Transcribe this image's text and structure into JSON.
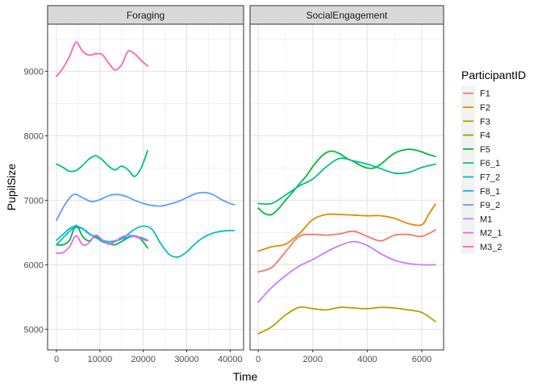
{
  "chart_data": {
    "type": "line",
    "xlabel": "Time",
    "ylabel": "PupilSize",
    "grid": true,
    "legend": {
      "title": "ParticipantID",
      "placement": "right",
      "entries": [
        "F1",
        "F2",
        "F3",
        "F4",
        "F5",
        "F6_1",
        "F7_2",
        "F8_1",
        "F9_2",
        "M1",
        "M2_1",
        "M3_2"
      ]
    },
    "colors": {
      "F1": "#F8766D",
      "F2": "#DE8C00",
      "F3": "#B79F00",
      "F4": "#7CAE00",
      "F5": "#00BA38",
      "F6_1": "#00C08B",
      "F7_2": "#00BFC4",
      "F8_1": "#00B4F0",
      "F9_2": "#619CFF",
      "M1": "#C77CFF",
      "M2_1": "#F564E3",
      "M3_2": "#FF64B0"
    },
    "y_ticks": [
      5000,
      6000,
      7000,
      8000,
      9000
    ],
    "ylim": [
      4680,
      9730
    ],
    "panels": [
      {
        "strip": "Foraging",
        "xlim": [
          -2050,
          43100
        ],
        "x_ticks": [
          0,
          10000,
          20000,
          30000,
          40000
        ],
        "x_tick_labels": [
          "0",
          "10000",
          "20000",
          "30000",
          "40000"
        ],
        "series": [
          {
            "name": "M3_2",
            "x": [
              0,
              1500,
              3000,
              4500,
              6000,
              7500,
              9000,
              10500,
              12000,
              13500,
              15000,
              16500,
              18000,
              19500,
              21000
            ],
            "y": [
              8920,
              9050,
              9230,
              9450,
              9310,
              9250,
              9270,
              9260,
              9130,
              9020,
              9100,
              9310,
              9270,
              9170,
              9080
            ]
          },
          {
            "name": "F6_1",
            "x": [
              0,
              1500,
              3000,
              4500,
              6000,
              7500,
              9000,
              10500,
              12000,
              13500,
              15000,
              16500,
              18000,
              19500,
              21000
            ],
            "y": [
              7560,
              7510,
              7450,
              7460,
              7540,
              7640,
              7690,
              7630,
              7530,
              7470,
              7530,
              7470,
              7370,
              7500,
              7770
            ]
          },
          {
            "name": "F9_2",
            "x": [
              0,
              2000,
              4000,
              6000,
              8000,
              10000,
              12000,
              14000,
              16000,
              18000,
              20000,
              22000,
              24000,
              26000,
              28000,
              30000,
              32000,
              34000,
              36000,
              38000,
              40000,
              41000
            ],
            "y": [
              6690,
              6940,
              7090,
              7040,
              6980,
              7010,
              7070,
              7090,
              7060,
              7000,
              6950,
              6920,
              6910,
              6940,
              6980,
              7040,
              7100,
              7120,
              7090,
              7010,
              6950,
              6930
            ]
          },
          {
            "name": "F7_2",
            "x": [
              0,
              2000,
              4000,
              6000,
              8000,
              10000,
              12000,
              14000,
              16000,
              18000,
              20000,
              22000,
              24000,
              26000,
              28000,
              30000,
              32000,
              34000,
              36000,
              38000,
              40000,
              41000
            ],
            "y": [
              6310,
              6450,
              6570,
              6560,
              6460,
              6390,
              6360,
              6380,
              6450,
              6550,
              6600,
              6550,
              6330,
              6160,
              6120,
              6200,
              6330,
              6430,
              6490,
              6520,
              6530,
              6530
            ]
          },
          {
            "name": "F5",
            "x": [
              0,
              1500,
              3000,
              4500,
              6000,
              7500,
              9000,
              10500,
              12000,
              13500,
              15000,
              16500,
              18000,
              19500,
              21000
            ],
            "y": [
              6310,
              6310,
              6380,
              6610,
              6440,
              6370,
              6440,
              6380,
              6330,
              6310,
              6360,
              6420,
              6450,
              6390,
              6260
            ]
          },
          {
            "name": "F8_1",
            "x": [
              0,
              1500,
              3000,
              4500,
              6000,
              7500,
              9000,
              10500,
              12000,
              13500,
              15000,
              16500,
              18000,
              19500,
              21000
            ],
            "y": [
              6380,
              6470,
              6560,
              6600,
              6560,
              6480,
              6430,
              6360,
              6330,
              6360,
              6400,
              6430,
              6440,
              6420,
              6380
            ]
          },
          {
            "name": "M2_1",
            "x": [
              0,
              1500,
              3000,
              4500,
              6000,
              7500,
              9000,
              10500,
              12000,
              13500,
              15000,
              16500,
              18000,
              19500,
              21000
            ],
            "y": [
              6180,
              6190,
              6280,
              6450,
              6310,
              6340,
              6460,
              6390,
              6320,
              6360,
              6430,
              6460,
              6440,
              6400,
              6370
            ]
          }
        ]
      },
      {
        "strip": "SocialEngagement",
        "xlim": [
          -300,
          6800
        ],
        "x_ticks": [
          0,
          2000,
          4000,
          6000
        ],
        "x_tick_labels": [
          "0",
          "2000",
          "4000",
          "6000"
        ],
        "series": [
          {
            "name": "F5",
            "x": [
              0,
              250,
              500,
              750,
              1000,
              1250,
              1500,
              1750,
              2000,
              2250,
              2500,
              2750,
              3000,
              3250,
              3500,
              3750,
              4000,
              4250,
              4500,
              4750,
              5000,
              5250,
              5500,
              5750,
              6000,
              6250,
              6500
            ],
            "y": [
              6880,
              6790,
              6780,
              6870,
              7000,
              7120,
              7250,
              7370,
              7520,
              7650,
              7740,
              7760,
              7720,
              7650,
              7600,
              7540,
              7500,
              7500,
              7560,
              7650,
              7730,
              7770,
              7790,
              7780,
              7750,
              7710,
              7680
            ]
          },
          {
            "name": "F6_1",
            "x": [
              0,
              500,
              1000,
              1500,
              2000,
              2500,
              3000,
              3500,
              4000,
              4500,
              5000,
              5500,
              6000,
              6500
            ],
            "y": [
              6950,
              6950,
              7080,
              7220,
              7330,
              7520,
              7650,
              7610,
              7560,
              7490,
              7420,
              7430,
              7510,
              7560
            ]
          },
          {
            "name": "F2",
            "x": [
              0,
              500,
              1000,
              1500,
              2000,
              2500,
              3000,
              3500,
              4000,
              4500,
              5000,
              5500,
              6000,
              6250,
              6500
            ],
            "y": [
              6210,
              6280,
              6320,
              6480,
              6700,
              6780,
              6780,
              6770,
              6760,
              6760,
              6720,
              6640,
              6620,
              6780,
              6940
            ]
          },
          {
            "name": "F1",
            "x": [
              0,
              500,
              1000,
              1500,
              2000,
              2500,
              3000,
              3500,
              4000,
              4500,
              5000,
              5500,
              6000,
              6500
            ],
            "y": [
              5890,
              5960,
              6200,
              6440,
              6470,
              6460,
              6480,
              6520,
              6440,
              6370,
              6460,
              6470,
              6440,
              6540
            ]
          },
          {
            "name": "M1",
            "x": [
              0,
              500,
              1000,
              1500,
              2000,
              2500,
              3000,
              3500,
              4000,
              4500,
              5000,
              5500,
              6000,
              6500
            ],
            "y": [
              5420,
              5650,
              5830,
              5980,
              6080,
              6200,
              6300,
              6360,
              6300,
              6170,
              6070,
              6020,
              6000,
              6000
            ]
          },
          {
            "name": "F3",
            "x": [
              0,
              500,
              1000,
              1500,
              2000,
              2500,
              3000,
              3500,
              4000,
              4500,
              5000,
              5500,
              6000,
              6500
            ],
            "y": [
              4930,
              5040,
              5220,
              5340,
              5320,
              5300,
              5340,
              5330,
              5320,
              5340,
              5330,
              5300,
              5260,
              5120
            ]
          }
        ]
      }
    ]
  }
}
